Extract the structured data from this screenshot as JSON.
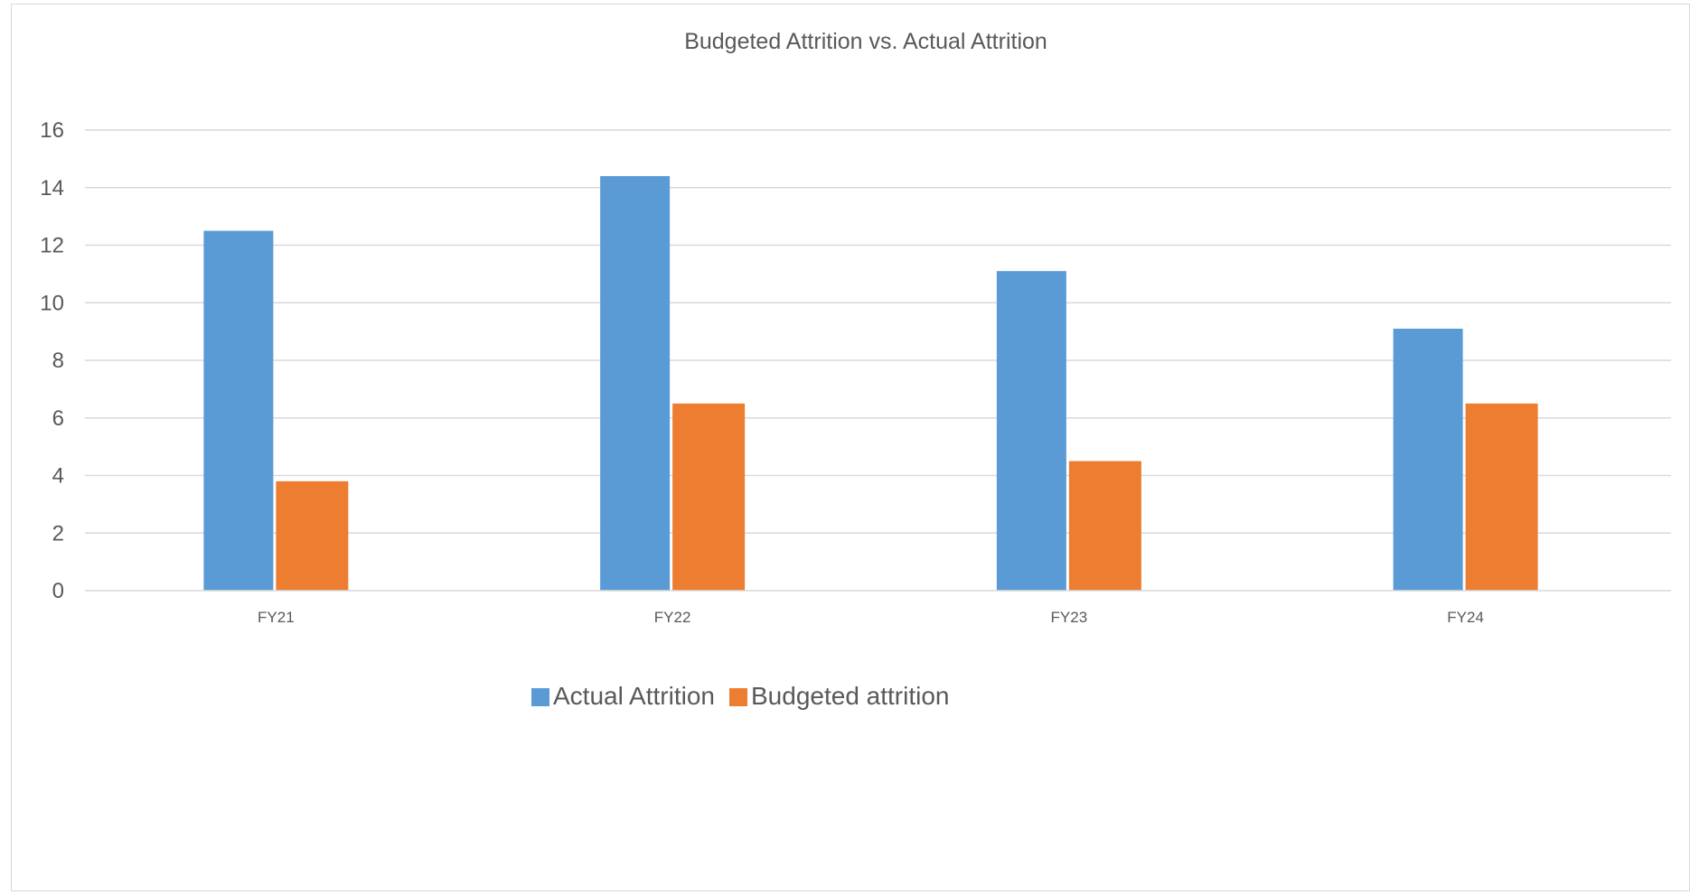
{
  "chart_data": {
    "type": "bar",
    "title": "Budgeted Attrition vs. Actual Attrition",
    "xlabel": "",
    "ylabel": "",
    "categories": [
      "FY21",
      "FY22",
      "FY23",
      "FY24"
    ],
    "series": [
      {
        "name": "Actual Attrition",
        "color": "#5b9bd5",
        "values": [
          12.5,
          14.4,
          11.1,
          9.1
        ]
      },
      {
        "name": "Budgeted attrition",
        "color": "#ed7d31",
        "values": [
          3.8,
          6.5,
          4.5,
          6.5
        ]
      }
    ],
    "ylim": [
      0,
      16
    ],
    "yticks": [
      "0",
      "2",
      "4",
      "6",
      "8",
      "10",
      "12",
      "14",
      "16"
    ],
    "grid": true,
    "legend_position": "bottom"
  }
}
